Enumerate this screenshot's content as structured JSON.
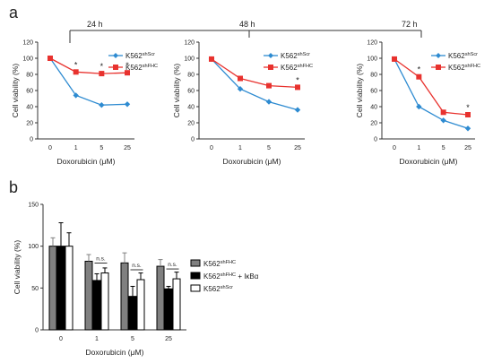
{
  "panels": {
    "a_label": "a",
    "b_label": "b"
  },
  "timepoints": [
    "24 h",
    "48 h",
    "72 h"
  ],
  "colors": {
    "shScr": "#2e8bd1",
    "shFHC": "#e8322e",
    "bar_shFHC": "#808080",
    "bar_shFHC_IkBa": "#000000",
    "bar_shScr": "#ffffff"
  },
  "chart_data": [
    {
      "type": "line",
      "panel": "a",
      "timepoint": "24 h",
      "ylabel": "Cell viability (%)",
      "xlabel": "Doxorubicin (μM)",
      "categories": [
        "0",
        "1",
        "5",
        "25"
      ],
      "ylim": [
        0,
        120
      ],
      "yticks": [
        "0",
        "20",
        "40",
        "60",
        "80",
        "100",
        "120"
      ],
      "series": [
        {
          "name": "K562",
          "sup": "shScr",
          "values": [
            100,
            54,
            42,
            43
          ],
          "marker": "diamond"
        },
        {
          "name": "K562",
          "sup": "shFHC",
          "values": [
            100,
            83,
            81,
            82
          ],
          "marker": "square"
        }
      ],
      "significance": [
        "",
        "*",
        "*",
        "*"
      ]
    },
    {
      "type": "line",
      "panel": "a",
      "timepoint": "48 h",
      "ylabel": "Cell viability (%)",
      "xlabel": "Doxorubicin (μM)",
      "categories": [
        "0",
        "1",
        "5",
        "25"
      ],
      "ylim": [
        0,
        120
      ],
      "yticks": [
        "0",
        "20",
        "40",
        "60",
        "80",
        "100",
        "120"
      ],
      "series": [
        {
          "name": "K562",
          "sup": "shScr",
          "values": [
            99,
            62,
            46,
            36
          ],
          "marker": "diamond"
        },
        {
          "name": "K562",
          "sup": "shFHC",
          "values": [
            99,
            75,
            66,
            64
          ],
          "marker": "square"
        }
      ],
      "significance": [
        "",
        "",
        "",
        "*"
      ]
    },
    {
      "type": "line",
      "panel": "a",
      "timepoint": "72 h",
      "ylabel": "Cell viability (%)",
      "xlabel": "Doxorubicin (μM)",
      "categories": [
        "0",
        "1",
        "5",
        "25"
      ],
      "ylim": [
        0,
        120
      ],
      "yticks": [
        "0",
        "20",
        "40",
        "60",
        "80",
        "100",
        "120"
      ],
      "series": [
        {
          "name": "K562",
          "sup": "shScr",
          "values": [
            99,
            40,
            23,
            13
          ],
          "marker": "diamond"
        },
        {
          "name": "K562",
          "sup": "shFHC",
          "values": [
            99,
            77,
            33,
            30
          ],
          "marker": "square"
        }
      ],
      "significance": [
        "",
        "*",
        "",
        "*"
      ]
    },
    {
      "type": "bar",
      "panel": "b",
      "ylabel": "Cell viability (%)",
      "xlabel": "Doxorubicin (μM)",
      "categories": [
        "0",
        "1",
        "5",
        "25"
      ],
      "ylim": [
        0,
        150
      ],
      "yticks": [
        "0",
        "50",
        "100",
        "150"
      ],
      "series": [
        {
          "name": "K562",
          "sup": "shFHC",
          "suffix": "",
          "values": [
            100,
            82,
            80,
            76
          ],
          "errors": [
            10,
            8,
            12,
            8
          ]
        },
        {
          "name": "K562",
          "sup": "shFHC",
          "suffix": " + IκBα",
          "values": [
            100,
            59,
            40,
            49
          ],
          "errors": [
            28,
            8,
            12,
            3
          ]
        },
        {
          "name": "K562",
          "sup": "shScr",
          "suffix": "",
          "values": [
            100,
            68,
            60,
            61
          ],
          "errors": [
            16,
            6,
            8,
            8
          ]
        }
      ],
      "annotations": [
        "",
        "n.s.",
        "n.s.",
        "n.s."
      ]
    }
  ]
}
